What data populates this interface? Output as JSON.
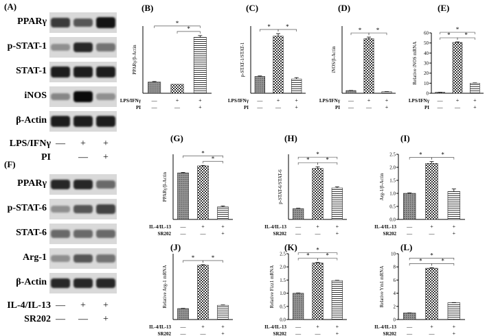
{
  "panel_letters": {
    "A": "(A)",
    "B": "(B)",
    "C": "(C)",
    "D": "(D)",
    "E": "(E)",
    "F": "(F)",
    "G": "(G)",
    "H": "(H)",
    "I": "(I)",
    "J": "(J)",
    "K": "(K)",
    "L": "(L)"
  },
  "blotA": {
    "rows": [
      "PPARγ",
      "p-STAT-1",
      "STAT-1",
      "iNOS",
      "β-Actin"
    ],
    "treat": [
      {
        "name": "LPS/IFNγ",
        "marks": [
          "—",
          "+",
          "+"
        ]
      },
      {
        "name": "PI",
        "marks": [
          "",
          "—",
          "+"
        ]
      }
    ],
    "intensity": [
      [
        0.75,
        0.6,
        0.95
      ],
      [
        0.3,
        0.85,
        0.45
      ],
      [
        0.9,
        0.9,
        0.9
      ],
      [
        0.35,
        1.0,
        0.3
      ],
      [
        0.9,
        0.9,
        0.9
      ]
    ]
  },
  "blotF": {
    "rows": [
      "PPARγ",
      "p-STAT-6",
      "STAT-6",
      "Arg-1",
      "β-Actin"
    ],
    "treat": [
      {
        "name": "IL-4/IL-13",
        "marks": [
          "—",
          "+",
          "+"
        ]
      },
      {
        "name": "SR202",
        "marks": [
          "—",
          "—",
          "+"
        ]
      }
    ],
    "intensity": [
      [
        0.85,
        0.85,
        0.5
      ],
      [
        0.3,
        0.6,
        0.7
      ],
      [
        0.5,
        0.5,
        0.5
      ],
      [
        0.3,
        0.6,
        0.45
      ],
      [
        0.85,
        0.85,
        0.85
      ]
    ]
  },
  "chart_data": [
    {
      "panel": "B",
      "type": "bar",
      "ylabel": "PPARγ/β-Actin",
      "values": [
        1.0,
        0.8,
        5.0
      ],
      "errors": [
        0.05,
        0.0,
        0.15
      ],
      "ylim": [
        0,
        6
      ],
      "yticks": [],
      "treat": [
        {
          "name": "LPS/IFNγ",
          "marks": [
            "—",
            "+",
            "+"
          ]
        },
        {
          "name": "PI",
          "marks": [
            "—",
            "—",
            "+"
          ]
        }
      ],
      "sig": [
        [
          0,
          2
        ],
        [
          1,
          2
        ]
      ]
    },
    {
      "panel": "C",
      "type": "bar",
      "ylabel": "p-STAT-1/STAT-1",
      "values": [
        1.0,
        3.4,
        0.85
      ],
      "errors": [
        0.03,
        0.15,
        0.08
      ],
      "ylim": [
        0,
        4
      ],
      "yticks": [],
      "treat": [
        {
          "name": "LPS/IFNγ",
          "marks": [
            "—",
            "+",
            "+"
          ]
        },
        {
          "name": "PI",
          "marks": [
            "—",
            "—",
            "+"
          ]
        }
      ],
      "sig": [
        [
          0,
          1
        ],
        [
          1,
          2
        ]
      ]
    },
    {
      "panel": "D",
      "type": "bar",
      "ylabel": "iNOS/β-Actin",
      "values": [
        1.0,
        20.3,
        0.6
      ],
      "errors": [
        0.05,
        0.6,
        0.05
      ],
      "ylim": [
        0,
        25
      ],
      "yticks": [],
      "treat": [
        {
          "name": "LPS/IFNγ",
          "marks": [
            "—",
            "+",
            "+"
          ]
        },
        {
          "name": "PI",
          "marks": [
            "—",
            "—",
            "+"
          ]
        }
      ],
      "sig": [
        [
          0,
          1
        ],
        [
          1,
          2
        ]
      ]
    },
    {
      "panel": "E",
      "type": "bar",
      "ylabel": "Relative iNOS mRNA",
      "values": [
        1.0,
        50.5,
        10.0
      ],
      "errors": [
        0.05,
        0.6,
        0.3
      ],
      "ylim": [
        0,
        60
      ],
      "yticks": [
        "0",
        "10",
        "20",
        "30",
        "40",
        "50",
        "60"
      ],
      "treat": [
        {
          "name": "LPS/IFNγ",
          "marks": [
            "—",
            "+",
            "+"
          ]
        },
        {
          "name": "PI",
          "marks": [
            "—",
            "—",
            "+"
          ]
        }
      ],
      "sig": [
        [
          0,
          1
        ],
        [
          1,
          2
        ],
        [
          0,
          2
        ]
      ]
    },
    {
      "panel": "G",
      "type": "bar",
      "ylabel": "PPARγ/β-Actin",
      "values": [
        1.0,
        1.15,
        0.27
      ],
      "errors": [
        0.01,
        0.01,
        0.02
      ],
      "ylim": [
        0,
        1.4
      ],
      "yticks": [],
      "treat": [
        {
          "name": "IL-4/IL-13",
          "marks": [
            "—",
            "+",
            "+"
          ]
        },
        {
          "name": "SR202",
          "marks": [
            "—",
            "—",
            "+"
          ]
        }
      ],
      "sig": [
        [
          0,
          2
        ],
        [
          1,
          2
        ]
      ]
    },
    {
      "panel": "H",
      "type": "bar",
      "ylabel": "p-STAT-6/STAT-6",
      "values": [
        1.0,
        4.7,
        2.9
      ],
      "errors": [
        0.03,
        0.15,
        0.1
      ],
      "ylim": [
        0,
        6
      ],
      "yticks": [],
      "treat": [
        {
          "name": "IL-4/IL-13",
          "marks": [
            "—",
            "+",
            "+"
          ]
        },
        {
          "name": "SR202",
          "marks": [
            "—",
            "—",
            "+"
          ]
        }
      ],
      "sig": [
        [
          0,
          1
        ],
        [
          1,
          2
        ],
        [
          0,
          2
        ]
      ]
    },
    {
      "panel": "I",
      "type": "bar",
      "ylabel": "Arg-1/β-Actin",
      "values": [
        1.0,
        2.15,
        1.07
      ],
      "errors": [
        0.02,
        0.07,
        0.1
      ],
      "ylim": [
        0,
        2.5
      ],
      "yticks": [
        "0.0",
        "0.5",
        "1.0",
        "1.5",
        "2.0",
        "2.5"
      ],
      "treat": [
        {
          "name": "IL-4/IL-13",
          "marks": [
            "—",
            "+",
            "+"
          ]
        },
        {
          "name": "SR202",
          "marks": [
            "—",
            "—",
            "+"
          ]
        }
      ],
      "sig": [
        [
          0,
          1
        ],
        [
          1,
          2
        ]
      ]
    },
    {
      "panel": "J",
      "type": "bar",
      "ylabel": "Relative Arg-1 mRNA",
      "values": [
        1.0,
        4.95,
        1.3
      ],
      "errors": [
        0.02,
        0.05,
        0.03
      ],
      "ylim": [
        0,
        6
      ],
      "yticks": [],
      "treat": [
        {
          "name": "IL-4/IL-13",
          "marks": [
            "—",
            "+",
            "+"
          ]
        },
        {
          "name": "SR202",
          "marks": [
            "—",
            "—",
            "+"
          ]
        }
      ],
      "sig": [
        [
          0,
          1
        ],
        [
          1,
          2
        ]
      ]
    },
    {
      "panel": "K",
      "type": "bar",
      "ylabel": "Relative Fizz1 mRNA",
      "values": [
        1.0,
        2.15,
        1.48
      ],
      "errors": [
        0.01,
        0.02,
        0.01
      ],
      "ylim": [
        0,
        2.5
      ],
      "yticks": [
        "0.0",
        "0.5",
        "1.0",
        "1.5",
        "2.0",
        "2.5"
      ],
      "treat": [
        {
          "name": "IL-4/IL-13",
          "marks": [
            "—",
            "+",
            "+"
          ]
        },
        {
          "name": "SR202",
          "marks": [
            "—",
            "—",
            "+"
          ]
        }
      ],
      "sig": [
        [
          0,
          1
        ],
        [
          1,
          2
        ],
        [
          0,
          2
        ]
      ]
    },
    {
      "panel": "L",
      "type": "bar",
      "ylabel": "Relative Ym1 mRNA",
      "values": [
        1.0,
        7.8,
        2.55
      ],
      "errors": [
        0.02,
        0.08,
        0.03
      ],
      "ylim": [
        0,
        10
      ],
      "yticks": [
        "0",
        "2",
        "4",
        "6",
        "8",
        "10"
      ],
      "treat": [
        {
          "name": "IL-4/IL-13",
          "marks": [
            "—",
            "+",
            "+"
          ]
        },
        {
          "name": "SR202",
          "marks": [
            "—",
            "—",
            "+"
          ]
        }
      ],
      "sig": [
        [
          0,
          1
        ],
        [
          1,
          2
        ],
        [
          0,
          2
        ]
      ]
    }
  ]
}
